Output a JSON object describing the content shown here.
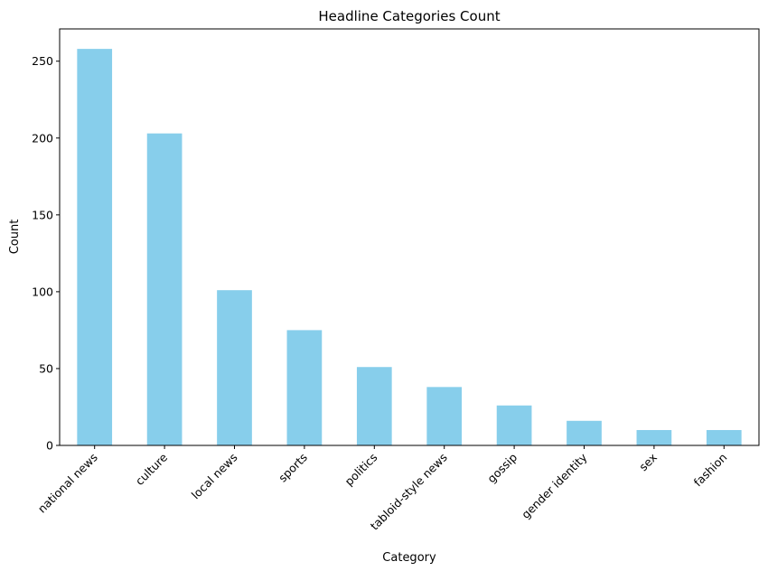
{
  "chart_data": {
    "type": "bar",
    "title": "Headline Categories Count",
    "xlabel": "Category",
    "ylabel": "Count",
    "categories": [
      "national news",
      "culture",
      "local news",
      "sports",
      "politics",
      "tabloid-style news",
      "gossip",
      "gender identity",
      "sex",
      "fashion"
    ],
    "values": [
      258,
      203,
      101,
      75,
      51,
      38,
      26,
      16,
      10,
      10
    ],
    "ylim": [
      0,
      271
    ],
    "yticks": [
      0,
      50,
      100,
      150,
      200,
      250
    ],
    "bar_color": "#87CEEB",
    "grid": false,
    "legend": false
  }
}
